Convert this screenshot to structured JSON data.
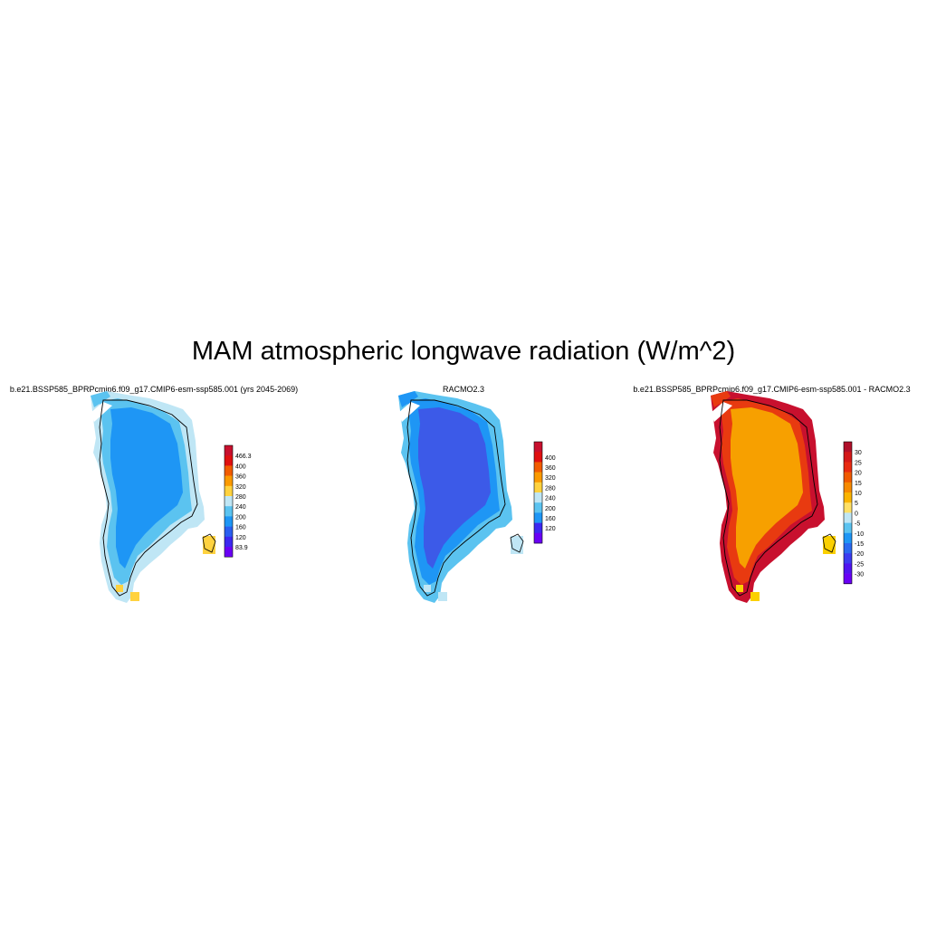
{
  "figure": {
    "title": "MAM atmospheric longwave radiation (W/m^2)"
  },
  "panels": [
    {
      "title": "b.e21.BSSP585_BPRPcmip6.f09_g17.CMIP6-esm-ssp585.001 (yrs 2045-2069)",
      "colorbar": {
        "labels": [
          "466.3",
          "400",
          "360",
          "320",
          "280",
          "240",
          "200",
          "160",
          "120",
          "83.9"
        ],
        "colors": [
          "#c8102e",
          "#e01010",
          "#f25c00",
          "#fb9a00",
          "#ffd23f",
          "#bfe6f5",
          "#5bc3f0",
          "#1e96f5",
          "#2a5ff0",
          "#3c28f0",
          "#6a00f5"
        ]
      },
      "fills": {
        "interior": "#1e96f5",
        "margin": "#5bc3f0",
        "edge": "#bfe6f5",
        "hotspot": "#ffd23f"
      }
    },
    {
      "title": "RACMO2.3",
      "colorbar": {
        "labels": [
          "400",
          "360",
          "320",
          "280",
          "240",
          "200",
          "160",
          "120"
        ],
        "colors": [
          "#c8102e",
          "#e01010",
          "#f25c00",
          "#fb9a00",
          "#ffd23f",
          "#bfe6f5",
          "#5bc3f0",
          "#1e96f5",
          "#3c28f0",
          "#6a00f5"
        ]
      },
      "fills": {
        "interior": "#3c5ae8",
        "margin": "#1e96f5",
        "edge": "#5bc3f0",
        "hotspot": "#bfe6f5"
      }
    },
    {
      "title": "b.e21.BSSP585_BPRPcmip6.f09_g17.CMIP6-esm-ssp585.001 - RACMO2.3",
      "colorbar": {
        "labels": [
          "30",
          "25",
          "20",
          "15",
          "10",
          "5",
          "0",
          "-5",
          "-10",
          "-15",
          "-20",
          "-25",
          "-30"
        ],
        "colors": [
          "#b0102a",
          "#d41818",
          "#e82a10",
          "#f05a00",
          "#f78a00",
          "#fbb400",
          "#ffe066",
          "#bfe6f5",
          "#5bc3f0",
          "#1e96f5",
          "#2a6af0",
          "#3c3cf0",
          "#5014f0",
          "#6a00f5"
        ]
      },
      "fills": {
        "interior": "#f7a000",
        "margin": "#e83a10",
        "edge": "#c8102e",
        "hotspot": "#fbd000"
      }
    }
  ]
}
